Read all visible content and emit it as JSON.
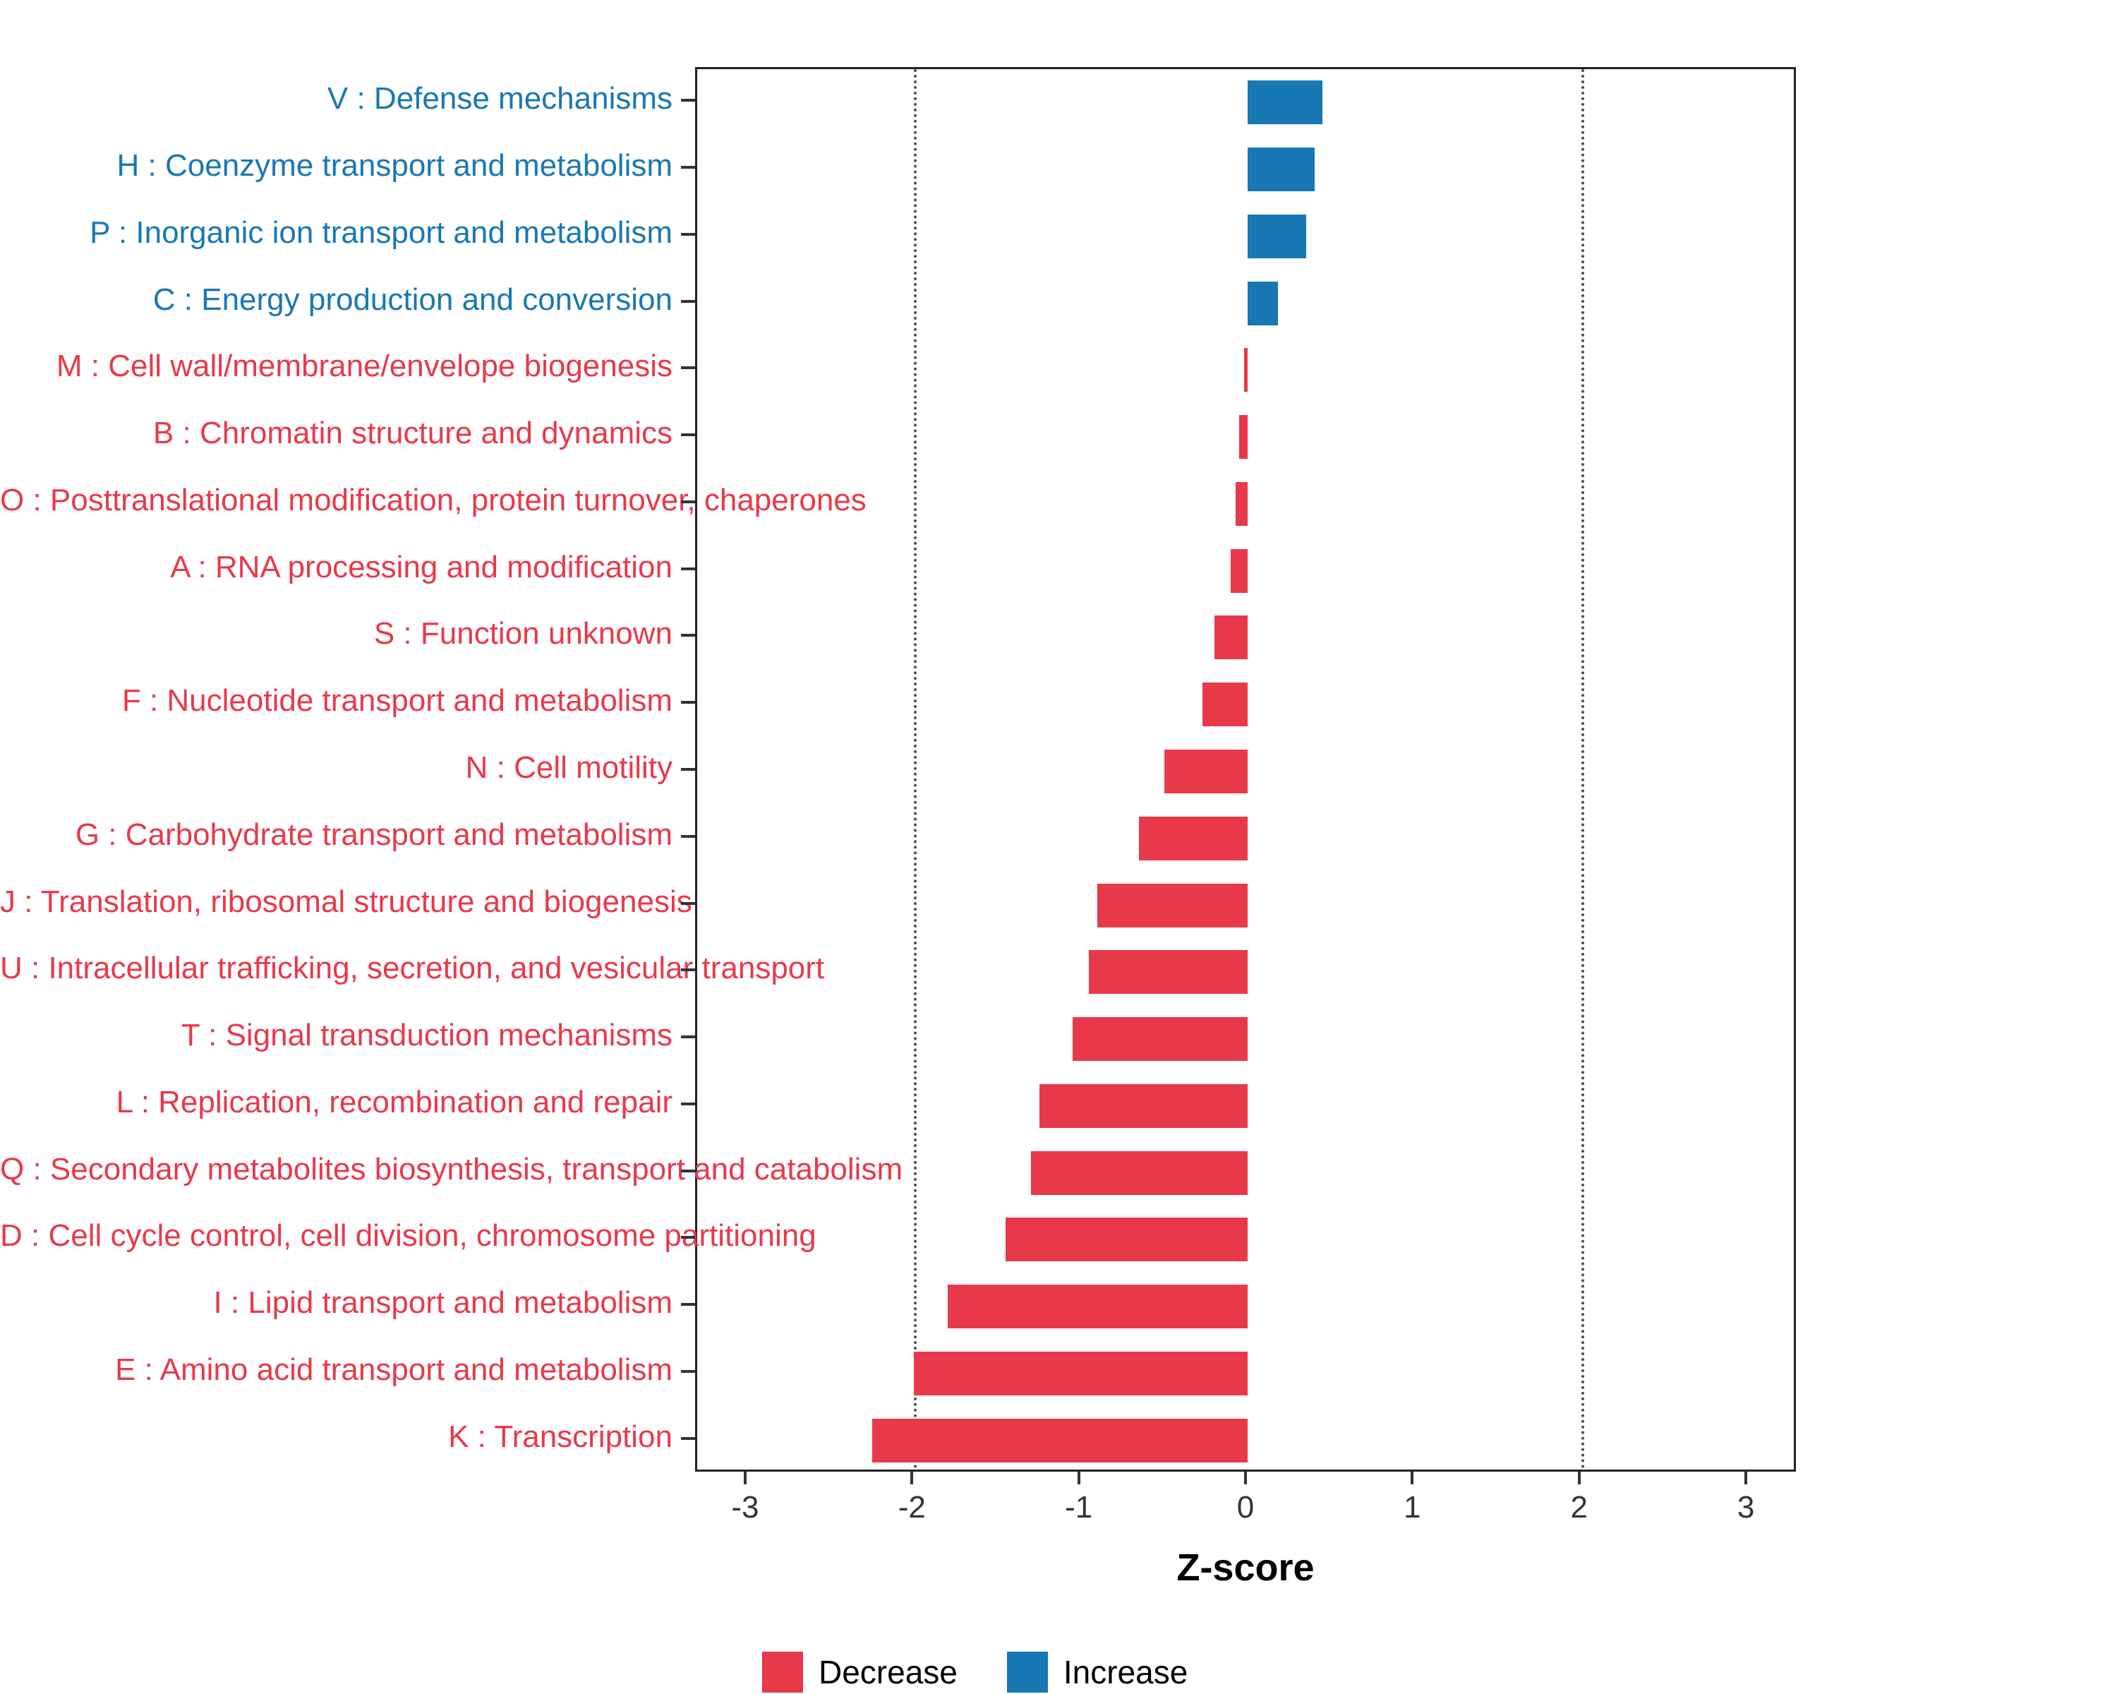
{
  "chart_data": {
    "type": "bar",
    "orientation": "horizontal",
    "title": "",
    "xlabel": "Z-score",
    "xlim": [
      -3.3,
      3.3
    ],
    "x_ticks": [
      -3,
      -2,
      -1,
      0,
      1,
      2,
      3
    ],
    "reference_lines": [
      -2,
      2
    ],
    "legend_position": "bottom",
    "bars": [
      {
        "category": "V : Defense mechanisms",
        "value": 0.45,
        "group": "increase"
      },
      {
        "category": "H : Coenzyme transport and metabolism",
        "value": 0.4,
        "group": "increase"
      },
      {
        "category": "P : Inorganic ion transport and metabolism",
        "value": 0.35,
        "group": "increase"
      },
      {
        "category": "C : Energy production and conversion",
        "value": 0.18,
        "group": "increase"
      },
      {
        "category": "M : Cell wall/membrane/envelope biogenesis",
        "value": -0.02,
        "group": "decrease"
      },
      {
        "category": "B : Chromatin structure and dynamics",
        "value": -0.05,
        "group": "decrease"
      },
      {
        "category": "O : Posttranslational modification, protein turnover, chaperones",
        "value": -0.07,
        "group": "decrease"
      },
      {
        "category": "A : RNA processing and modification",
        "value": -0.1,
        "group": "decrease"
      },
      {
        "category": "S : Function unknown",
        "value": -0.2,
        "group": "decrease"
      },
      {
        "category": "F : Nucleotide transport and metabolism",
        "value": -0.27,
        "group": "decrease"
      },
      {
        "category": "N : Cell motility",
        "value": -0.5,
        "group": "decrease"
      },
      {
        "category": "G : Carbohydrate transport and metabolism",
        "value": -0.65,
        "group": "decrease"
      },
      {
        "category": "J : Translation, ribosomal structure and biogenesis",
        "value": -0.9,
        "group": "decrease"
      },
      {
        "category": "U : Intracellular trafficking, secretion, and vesicular transport",
        "value": -0.95,
        "group": "decrease"
      },
      {
        "category": "T : Signal transduction mechanisms",
        "value": -1.05,
        "group": "decrease"
      },
      {
        "category": "L : Replication, recombination and repair",
        "value": -1.25,
        "group": "decrease"
      },
      {
        "category": "Q : Secondary metabolites biosynthesis, transport and catabolism",
        "value": -1.3,
        "group": "decrease"
      },
      {
        "category": "D : Cell cycle control, cell division, chromosome partitioning",
        "value": -1.45,
        "group": "decrease"
      },
      {
        "category": "I : Lipid transport and metabolism",
        "value": -1.8,
        "group": "decrease"
      },
      {
        "category": "E : Amino acid transport and metabolism",
        "value": -2.0,
        "group": "decrease"
      },
      {
        "category": "K : Transcription",
        "value": -2.25,
        "group": "decrease"
      }
    ]
  },
  "colors": {
    "decrease": "#E8394A",
    "increase": "#1878B4",
    "axis_text": "#333333",
    "panel_border": "#222222",
    "reference_line": "#4d4d4d"
  },
  "axis": {
    "x_tick_labels": [
      "-3",
      "-2",
      "-1",
      "0",
      "1",
      "2",
      "3"
    ]
  },
  "legend": {
    "items": [
      {
        "label": "Decrease",
        "group": "decrease"
      },
      {
        "label": "Increase",
        "group": "increase"
      }
    ]
  }
}
